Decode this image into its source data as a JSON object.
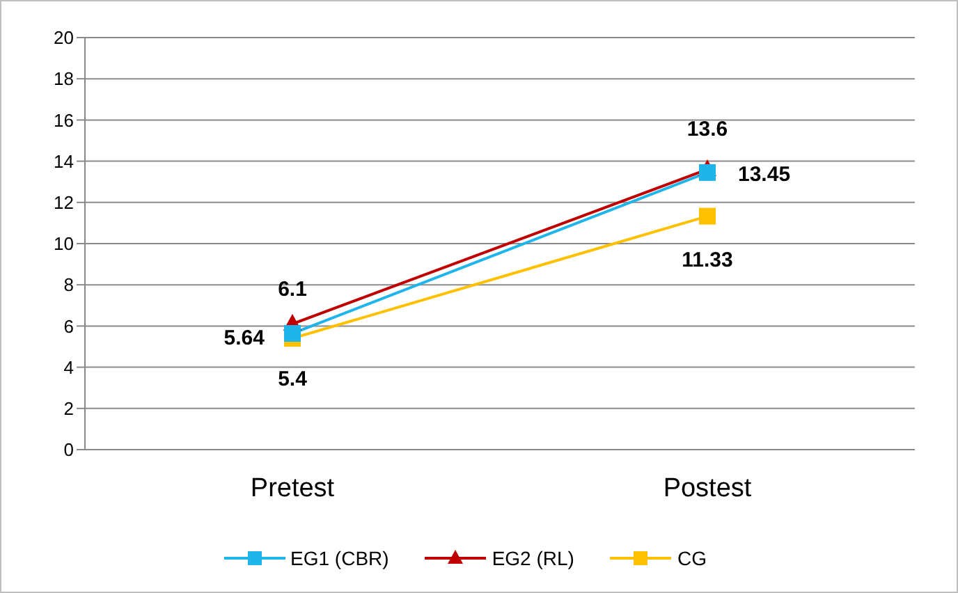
{
  "chart_data": {
    "type": "line",
    "categories": [
      "Pretest",
      "Postest"
    ],
    "series": [
      {
        "name": "EG1 (CBR)",
        "color": "#1fb4ea",
        "marker": "square",
        "values": [
          5.64,
          13.45
        ]
      },
      {
        "name": "EG2 (RL)",
        "color": "#c00000",
        "marker": "triangle",
        "values": [
          6.1,
          13.6
        ]
      },
      {
        "name": "CG",
        "color": "#ffc000",
        "marker": "square",
        "values": [
          5.4,
          11.33
        ]
      }
    ],
    "ylim": [
      0,
      20
    ],
    "yticks": [
      0,
      2,
      4,
      6,
      8,
      10,
      12,
      14,
      16,
      18,
      20
    ],
    "grid": "y",
    "legend": "bottom",
    "data_labels": true
  }
}
